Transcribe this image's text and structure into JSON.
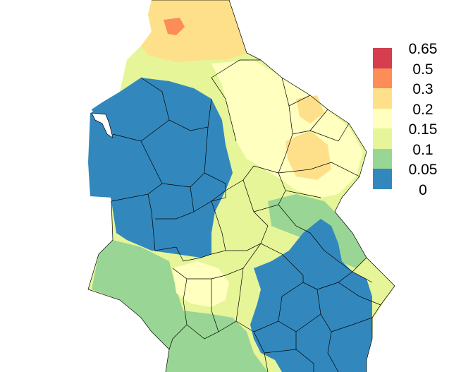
{
  "map": {
    "colors": {
      "class_0": "#3288bd",
      "class_005": "#99d594",
      "class_01": "#e6f598",
      "class_015": "#ffffbf",
      "class_02": "#fee08b",
      "class_03": "#fc8d59",
      "class_05": "#d53e4f",
      "boundary": "#000000",
      "background": "#ffffff"
    }
  },
  "legend": {
    "items": [
      {
        "label": "0.65",
        "color": "#d53e4f"
      },
      {
        "label": "0.5",
        "color": "#fc8d59"
      },
      {
        "label": "0.3",
        "color": "#fee08b"
      },
      {
        "label": "0.2",
        "color": "#ffffbf"
      },
      {
        "label": "0.15",
        "color": "#e6f598"
      },
      {
        "label": "0.1",
        "color": "#99d594"
      },
      {
        "label": "0.05",
        "color": "#3288bd"
      },
      {
        "label": "0",
        "color": ""
      }
    ]
  }
}
